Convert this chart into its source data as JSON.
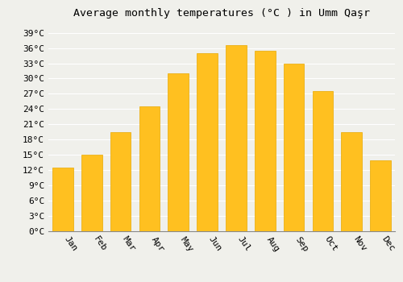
{
  "title": "Average monthly temperatures (°C ) in Umm Qaşr",
  "months": [
    "Jan",
    "Feb",
    "Mar",
    "Apr",
    "May",
    "Jun",
    "Jul",
    "Aug",
    "Sep",
    "Oct",
    "Nov",
    "Dec"
  ],
  "values": [
    12.5,
    15.0,
    19.5,
    24.5,
    31.0,
    35.0,
    36.5,
    35.5,
    33.0,
    27.5,
    19.5,
    14.0
  ],
  "bar_color": "#FFC020",
  "bar_edge_color": "#E8A800",
  "background_color": "#F0F0EB",
  "grid_color": "#FFFFFF",
  "ytick_step": 3,
  "ymin": 0,
  "ymax": 39,
  "title_fontsize": 9.5,
  "tick_fontsize": 8,
  "font_family": "monospace",
  "xlabel_rotation": -55
}
